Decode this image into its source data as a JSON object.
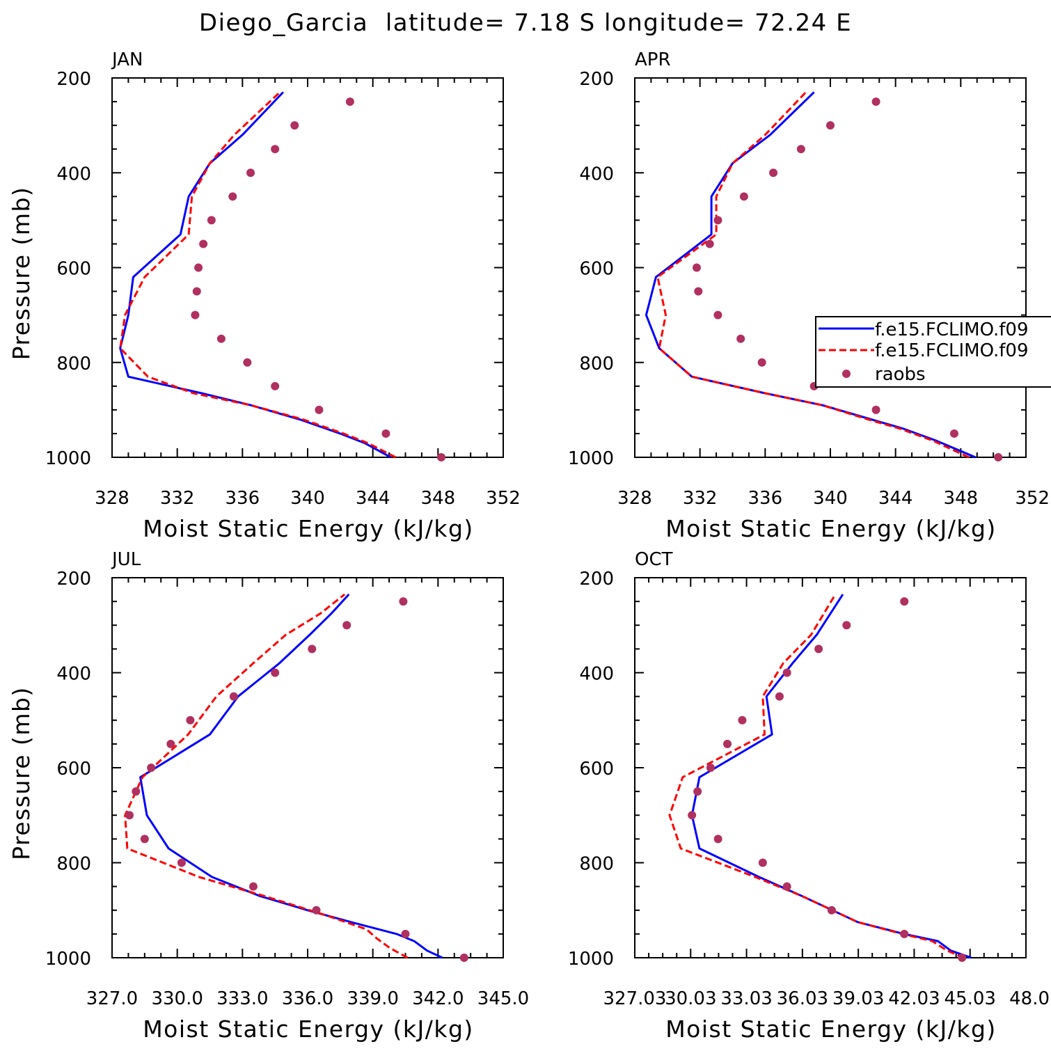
{
  "figure": {
    "title": "Diego_Garcia  latitude= 7.18 S longitude= 72.24 E"
  },
  "legend": {
    "entries": [
      {
        "label": "f.e15.FCLIMO.f09",
        "color": "#0000ff",
        "style": "solid"
      },
      {
        "label": "f.e15.FCLIMO.f09",
        "color": "#ff0000",
        "style": "dashed"
      },
      {
        "label": "raobs",
        "color": "#b03060",
        "style": "marker"
      }
    ]
  },
  "chart_data": [
    {
      "type": "line",
      "panel": "JAN",
      "xlabel": "Moist Static Energy (kJ/kg)",
      "ylabel": "Pressure (mb)",
      "xlim": [
        328,
        352
      ],
      "ylim": [
        1000,
        200
      ],
      "xticks": [
        "328",
        "332",
        "336",
        "340",
        "344",
        "348",
        "352"
      ],
      "yticks": [
        "200",
        "400",
        "600",
        "800",
        "1000"
      ],
      "series": [
        {
          "color": "#0000ff",
          "style": "solid",
          "x": [
            345.1,
            343.5,
            342.0,
            339.5,
            336.5,
            333.5,
            329.0,
            328.5,
            329.0,
            329.3,
            332.2,
            332.7,
            334.0,
            336.0,
            338.5
          ],
          "y": [
            1000,
            970,
            950,
            920,
            890,
            865,
            830,
            770,
            700,
            620,
            530,
            450,
            380,
            320,
            230
          ]
        },
        {
          "color": "#ff0000",
          "style": "dashed",
          "x": [
            345.4,
            343.7,
            342.2,
            339.7,
            336.5,
            333.0,
            330.2,
            328.5,
            328.8,
            330.0,
            332.7,
            332.9,
            334.0,
            335.5,
            338.3
          ],
          "y": [
            1000,
            970,
            950,
            920,
            890,
            865,
            830,
            770,
            700,
            620,
            530,
            450,
            380,
            320,
            230
          ]
        },
        {
          "color": "#b03060",
          "style": "marker",
          "x": [
            348.2,
            344.8,
            340.7,
            338.0,
            336.3,
            334.7,
            333.1,
            333.2,
            333.3,
            333.6,
            334.1,
            335.4,
            336.5,
            338.0,
            339.2,
            342.6
          ],
          "y": [
            1000,
            950,
            900,
            850,
            800,
            750,
            700,
            650,
            600,
            550,
            500,
            450,
            400,
            350,
            300,
            250
          ]
        }
      ]
    },
    {
      "type": "line",
      "panel": "APR",
      "xlabel": "Moist Static Energy (kJ/kg)",
      "ylabel": "",
      "xlim": [
        328,
        352
      ],
      "ylim": [
        1000,
        200
      ],
      "xticks": [
        "328",
        "332",
        "336",
        "340",
        "344",
        "348",
        "352"
      ],
      "yticks": [
        "200",
        "400",
        "600",
        "800",
        "1000"
      ],
      "series": [
        {
          "color": "#0000ff",
          "style": "solid",
          "x": [
            348.9,
            346.5,
            344.5,
            342.5,
            339.5,
            336.0,
            331.5,
            329.5,
            328.7,
            329.3,
            332.7,
            332.7,
            334.0,
            336.3,
            339.0
          ],
          "y": [
            1000,
            965,
            940,
            920,
            890,
            865,
            830,
            770,
            700,
            620,
            530,
            450,
            380,
            320,
            230
          ]
        },
        {
          "color": "#ff0000",
          "style": "dashed",
          "x": [
            348.5,
            346.3,
            344.3,
            342.3,
            339.5,
            336.0,
            331.5,
            329.5,
            329.9,
            329.4,
            333.0,
            333.0,
            334.0,
            336.0,
            338.5
          ],
          "y": [
            1000,
            965,
            940,
            920,
            890,
            865,
            830,
            770,
            700,
            620,
            530,
            450,
            380,
            320,
            230
          ]
        },
        {
          "color": "#b03060",
          "style": "marker",
          "x": [
            350.3,
            347.6,
            342.8,
            339.0,
            335.8,
            334.5,
            333.1,
            331.9,
            331.8,
            332.6,
            333.1,
            334.7,
            336.5,
            338.2,
            340.0,
            342.8
          ],
          "y": [
            1000,
            950,
            900,
            850,
            800,
            750,
            700,
            650,
            600,
            550,
            500,
            450,
            400,
            350,
            300,
            250
          ]
        }
      ]
    },
    {
      "type": "line",
      "panel": "JUL",
      "xlabel": "Moist Static Energy (kJ/kg)",
      "ylabel": "Pressure (mb)",
      "xlim": [
        327,
        345
      ],
      "ylim": [
        1000,
        200
      ],
      "xticks": [
        "327.0",
        "330.0",
        "333.0",
        "336.0",
        "339.0",
        "342.0",
        "345.0"
      ],
      "yticks": [
        "200",
        "400",
        "600",
        "800",
        "1000"
      ],
      "series": [
        {
          "color": "#0000ff",
          "style": "solid",
          "x": [
            342.2,
            341.5,
            340.9,
            340.1,
            338.0,
            336.0,
            333.8,
            331.6,
            329.6,
            328.6,
            328.3,
            331.5,
            332.8,
            334.7,
            336.1,
            337.1,
            337.9
          ],
          "y": [
            1000,
            985,
            965,
            950,
            925,
            900,
            870,
            830,
            770,
            700,
            620,
            530,
            450,
            380,
            320,
            275,
            235
          ]
        },
        {
          "color": "#ff0000",
          "style": "dashed",
          "x": [
            340.6,
            339.8,
            339.2,
            338.7,
            336.8,
            334.0,
            331.0,
            327.7,
            327.6,
            328.4,
            330.5,
            331.8,
            333.5,
            335.0,
            336.6,
            337.7
          ],
          "y": [
            1000,
            980,
            960,
            940,
            910,
            870,
            830,
            770,
            700,
            620,
            530,
            450,
            380,
            320,
            275,
            235
          ]
        },
        {
          "color": "#b03060",
          "style": "marker",
          "x": [
            343.2,
            340.5,
            336.4,
            333.5,
            330.2,
            328.5,
            327.8,
            328.1,
            328.8,
            329.7,
            330.6,
            332.6,
            334.5,
            336.2,
            337.8,
            340.4
          ],
          "y": [
            1000,
            950,
            900,
            850,
            800,
            750,
            700,
            650,
            600,
            550,
            500,
            450,
            400,
            350,
            300,
            250
          ]
        }
      ]
    },
    {
      "type": "line",
      "panel": "OCT",
      "xlabel": "Moist Static Energy (kJ/kg)",
      "ylabel": "",
      "xlim": [
        327.03,
        348.03
      ],
      "ylim": [
        1000,
        200
      ],
      "xticks": [
        "327.03",
        "30.03",
        "33.03",
        "36.03",
        "39.03",
        "42.03",
        "45.03",
        "48.0"
      ],
      "yticks": [
        "200",
        "400",
        "600",
        "800",
        "1000"
      ],
      "series": [
        {
          "color": "#0000ff",
          "style": "solid",
          "x": [
            345.1,
            344.0,
            343.3,
            341.5,
            339.0,
            336.0,
            333.7,
            330.5,
            330.1,
            330.5,
            334.4,
            334.1,
            335.5,
            336.8,
            338.2
          ],
          "y": [
            1000,
            985,
            965,
            950,
            925,
            870,
            830,
            770,
            700,
            620,
            530,
            450,
            380,
            320,
            235
          ]
        },
        {
          "color": "#ff0000",
          "style": "dashed",
          "x": [
            344.7,
            343.8,
            343.0,
            341.4,
            339.0,
            336.0,
            333.5,
            329.5,
            328.9,
            329.6,
            334.0,
            333.9,
            335.0,
            336.5,
            337.8
          ],
          "y": [
            1000,
            985,
            965,
            950,
            925,
            870,
            830,
            770,
            700,
            620,
            530,
            450,
            380,
            320,
            235
          ]
        },
        {
          "color": "#b03060",
          "style": "marker",
          "x": [
            344.6,
            341.5,
            337.6,
            335.2,
            333.9,
            331.5,
            330.1,
            330.4,
            331.1,
            332.0,
            332.8,
            334.8,
            335.2,
            336.9,
            338.4,
            341.5
          ],
          "y": [
            1000,
            950,
            900,
            850,
            800,
            750,
            700,
            650,
            600,
            550,
            500,
            450,
            400,
            350,
            300,
            250
          ]
        }
      ]
    }
  ]
}
